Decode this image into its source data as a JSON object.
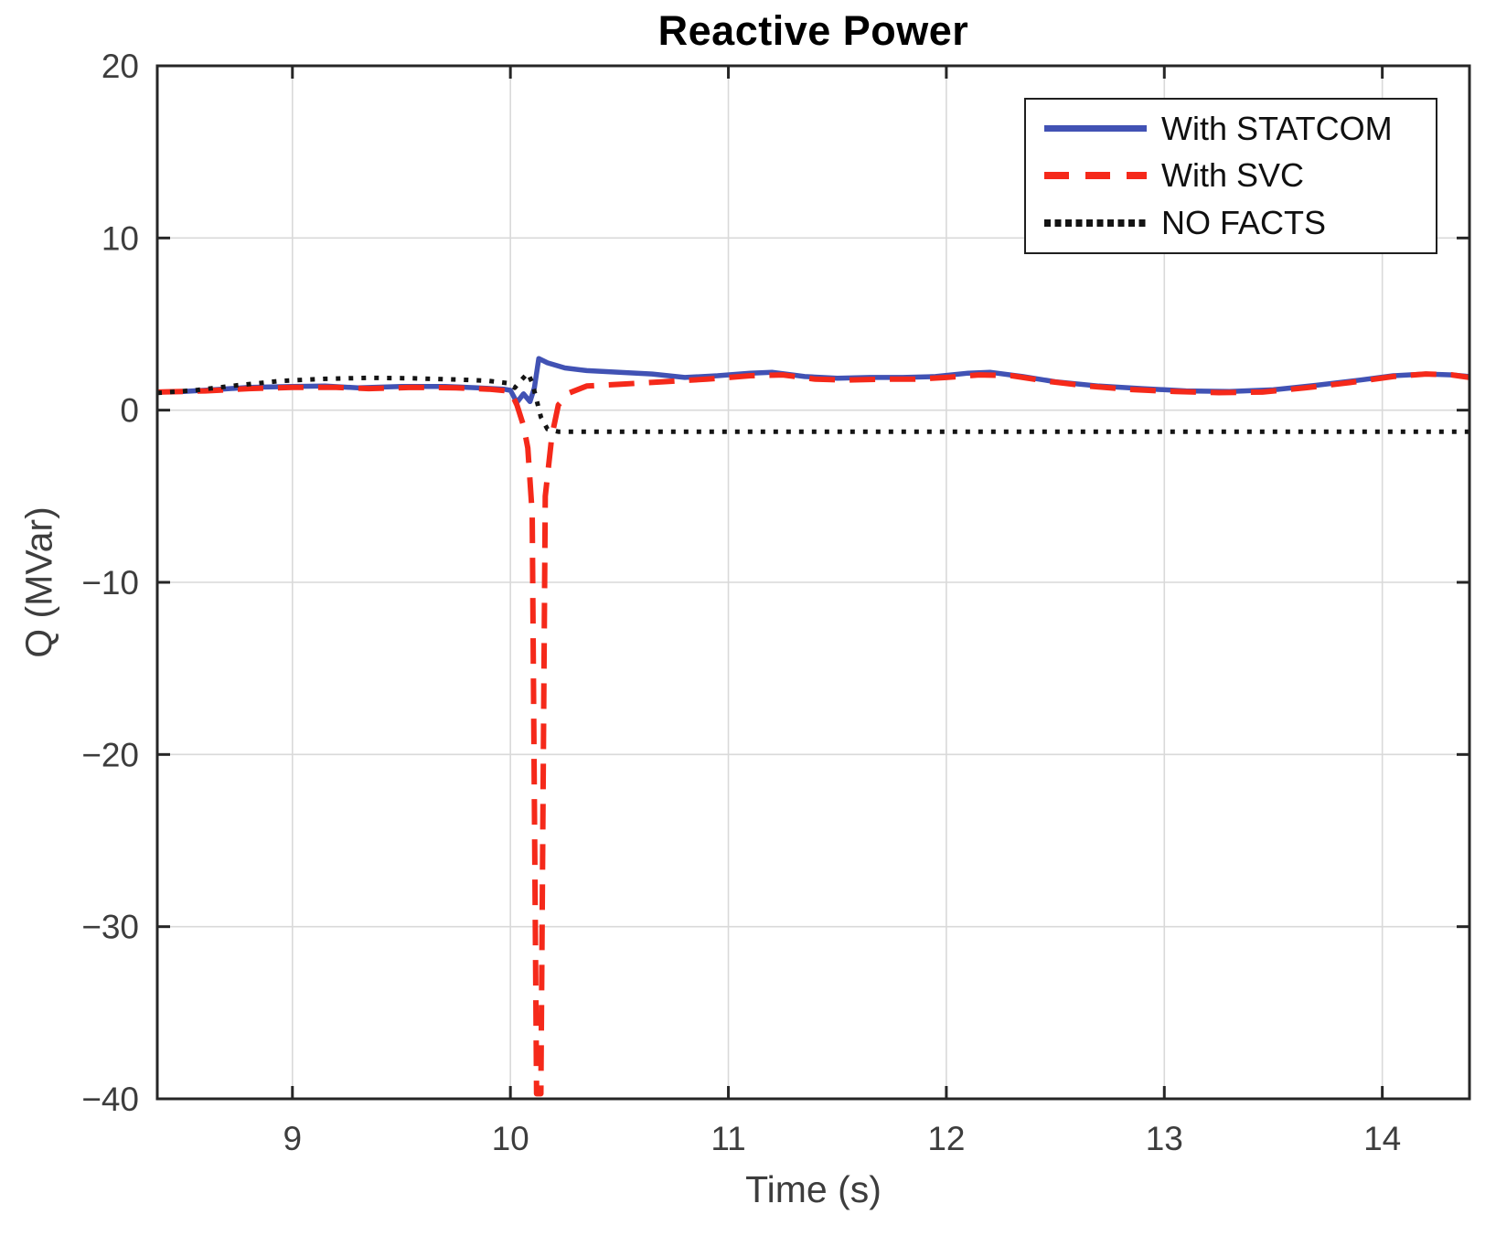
{
  "figure": {
    "background": "#ffffff"
  },
  "style": {
    "axis_color": "#262626",
    "grid_color": "#d9d9d9",
    "tick_label_color": "#3d3d3d",
    "title_color": "#000000"
  },
  "chart_data": {
    "type": "line",
    "title": "Reactive Power",
    "xlabel": "Time (s)",
    "ylabel": "Q (MVar)",
    "grid": true,
    "x_axis": {
      "range": [
        8.38,
        14.4
      ],
      "ticks": [
        9,
        10,
        11,
        12,
        13,
        14
      ],
      "tick_labels": [
        "9",
        "10",
        "11",
        "12",
        "13",
        "14"
      ]
    },
    "y_axis": {
      "range": [
        -40,
        20
      ],
      "ticks": [
        -40,
        -30,
        -20,
        -10,
        0,
        10,
        20
      ],
      "tick_labels": [
        "−40",
        "−30",
        "−20",
        "−10",
        "0",
        "10",
        "20"
      ]
    },
    "legend": {
      "position": "top-right",
      "border": true
    },
    "series": [
      {
        "name": "With STATCOM",
        "color": "#4152b4",
        "line_style": "solid",
        "stroke_width": 5.5,
        "points": [
          [
            8.38,
            1.05
          ],
          [
            8.5,
            1.08
          ],
          [
            8.65,
            1.2
          ],
          [
            8.8,
            1.32
          ],
          [
            9.0,
            1.38
          ],
          [
            9.15,
            1.4
          ],
          [
            9.3,
            1.3
          ],
          [
            9.5,
            1.38
          ],
          [
            9.7,
            1.38
          ],
          [
            9.85,
            1.3
          ],
          [
            9.97,
            1.22
          ],
          [
            10.0,
            1.15
          ],
          [
            10.03,
            0.45
          ],
          [
            10.06,
            0.95
          ],
          [
            10.09,
            0.5
          ],
          [
            10.11,
            1.3
          ],
          [
            10.13,
            3.0
          ],
          [
            10.17,
            2.75
          ],
          [
            10.25,
            2.45
          ],
          [
            10.35,
            2.3
          ],
          [
            10.5,
            2.2
          ],
          [
            10.65,
            2.1
          ],
          [
            10.8,
            1.9
          ],
          [
            10.95,
            2.0
          ],
          [
            11.1,
            2.15
          ],
          [
            11.2,
            2.2
          ],
          [
            11.35,
            1.95
          ],
          [
            11.5,
            1.85
          ],
          [
            11.65,
            1.9
          ],
          [
            11.8,
            1.9
          ],
          [
            11.95,
            1.95
          ],
          [
            12.1,
            2.15
          ],
          [
            12.2,
            2.2
          ],
          [
            12.35,
            1.95
          ],
          [
            12.5,
            1.65
          ],
          [
            12.7,
            1.4
          ],
          [
            12.9,
            1.25
          ],
          [
            13.1,
            1.12
          ],
          [
            13.3,
            1.08
          ],
          [
            13.5,
            1.18
          ],
          [
            13.7,
            1.45
          ],
          [
            13.9,
            1.75
          ],
          [
            14.05,
            2.0
          ],
          [
            14.2,
            2.1
          ],
          [
            14.32,
            2.05
          ],
          [
            14.4,
            1.95
          ]
        ]
      },
      {
        "name": "With SVC",
        "color": "#f5291a",
        "line_style": "dashed",
        "stroke_width": 6,
        "points": [
          [
            8.38,
            1.05
          ],
          [
            8.6,
            1.12
          ],
          [
            8.8,
            1.25
          ],
          [
            9.0,
            1.32
          ],
          [
            9.2,
            1.32
          ],
          [
            9.35,
            1.25
          ],
          [
            9.55,
            1.32
          ],
          [
            9.75,
            1.3
          ],
          [
            9.9,
            1.22
          ],
          [
            10.0,
            1.1
          ],
          [
            10.03,
            0.3
          ],
          [
            10.06,
            -0.9
          ],
          [
            10.08,
            -2.2
          ],
          [
            10.1,
            -6.0
          ],
          [
            10.12,
            -39.7
          ],
          [
            10.14,
            -39.7
          ],
          [
            10.16,
            -5.0
          ],
          [
            10.19,
            -1.5
          ],
          [
            10.22,
            0.3
          ],
          [
            10.27,
            1.0
          ],
          [
            10.35,
            1.4
          ],
          [
            10.5,
            1.5
          ],
          [
            10.7,
            1.65
          ],
          [
            10.9,
            1.8
          ],
          [
            11.1,
            2.0
          ],
          [
            11.25,
            2.05
          ],
          [
            11.4,
            1.8
          ],
          [
            11.55,
            1.75
          ],
          [
            11.7,
            1.8
          ],
          [
            11.85,
            1.8
          ],
          [
            12.0,
            1.9
          ],
          [
            12.15,
            2.05
          ],
          [
            12.3,
            2.0
          ],
          [
            12.45,
            1.7
          ],
          [
            12.65,
            1.4
          ],
          [
            12.85,
            1.2
          ],
          [
            13.05,
            1.08
          ],
          [
            13.25,
            1.02
          ],
          [
            13.45,
            1.05
          ],
          [
            13.65,
            1.3
          ],
          [
            13.85,
            1.6
          ],
          [
            14.05,
            1.95
          ],
          [
            14.2,
            2.1
          ],
          [
            14.32,
            2.05
          ],
          [
            14.4,
            1.9
          ]
        ]
      },
      {
        "name": "NO FACTS",
        "color": "#141414",
        "line_style": "dotted",
        "stroke_width": 5,
        "points": [
          [
            8.38,
            1.0
          ],
          [
            8.55,
            1.15
          ],
          [
            8.75,
            1.45
          ],
          [
            8.95,
            1.7
          ],
          [
            9.15,
            1.82
          ],
          [
            9.35,
            1.88
          ],
          [
            9.55,
            1.85
          ],
          [
            9.75,
            1.78
          ],
          [
            9.9,
            1.7
          ],
          [
            10.0,
            1.55
          ],
          [
            10.02,
            1.3
          ],
          [
            10.05,
            1.75
          ],
          [
            10.08,
            2.15
          ],
          [
            10.1,
            1.6
          ],
          [
            10.12,
            0.6
          ],
          [
            10.14,
            -0.4
          ],
          [
            10.17,
            -1.1
          ],
          [
            10.22,
            -1.25
          ],
          [
            10.5,
            -1.25
          ],
          [
            11.0,
            -1.25
          ],
          [
            12.0,
            -1.25
          ],
          [
            13.0,
            -1.25
          ],
          [
            14.0,
            -1.25
          ],
          [
            14.4,
            -1.25
          ]
        ]
      }
    ]
  }
}
